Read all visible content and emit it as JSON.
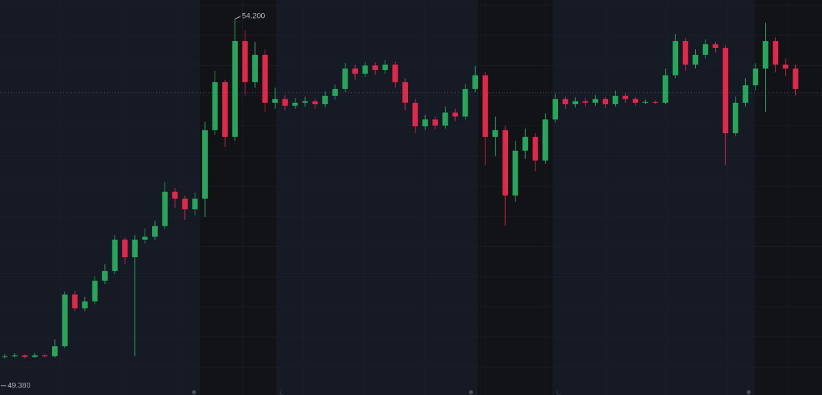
{
  "chart_data": {
    "type": "candlestick",
    "open": [
      49.76,
      49.77,
      49.78,
      49.76,
      49.78,
      49.77,
      49.9,
      50.58,
      50.4,
      50.49,
      50.76,
      50.89,
      51.3,
      51.07,
      51.3,
      51.34,
      51.48,
      51.93,
      51.84,
      51.7,
      51.84,
      52.74,
      53.37,
      52.65,
      53.91,
      53.37,
      53.73,
      53.1,
      53.15,
      53.06,
      53.1,
      53.12,
      53.08,
      53.19,
      53.28,
      53.55,
      53.48,
      53.59,
      53.53,
      53.6,
      53.37,
      53.1,
      52.79,
      52.88,
      52.8,
      52.97,
      52.92,
      53.28,
      53.46,
      52.65,
      52.74,
      51.88,
      52.47,
      52.65,
      52.34,
      52.88,
      53.15,
      53.08,
      53.12,
      53.1,
      53.15,
      53.08,
      53.19,
      53.15,
      53.1,
      53.11,
      53.1,
      53.46,
      53.91,
      53.6,
      53.73,
      53.87,
      53.82,
      52.7,
      53.1,
      53.33,
      53.55,
      53.91,
      53.6,
      53.55
    ],
    "high": [
      49.8,
      49.81,
      49.8,
      49.81,
      49.8,
      49.99,
      50.62,
      50.63,
      50.55,
      50.82,
      50.98,
      51.36,
      51.33,
      51.36,
      51.45,
      51.55,
      52.06,
      51.98,
      51.88,
      51.92,
      52.85,
      53.52,
      53.4,
      54.2,
      54.05,
      53.9,
      53.8,
      53.3,
      53.2,
      53.16,
      53.18,
      53.16,
      53.25,
      53.34,
      53.62,
      53.6,
      53.64,
      53.63,
      53.66,
      53.64,
      53.42,
      53.15,
      52.94,
      52.92,
      53.05,
      53.02,
      53.35,
      53.58,
      53.5,
      52.92,
      52.8,
      52.6,
      52.76,
      52.7,
      52.96,
      53.22,
      53.18,
      53.17,
      53.16,
      53.2,
      53.18,
      53.26,
      53.22,
      53.18,
      53.14,
      53.13,
      53.55,
      54.0,
      53.95,
      53.8,
      53.93,
      53.9,
      53.86,
      53.18,
      53.42,
      53.62,
      54.15,
      53.96,
      53.68,
      53.6
    ],
    "low": [
      49.74,
      49.75,
      49.74,
      49.75,
      49.75,
      49.75,
      49.88,
      50.36,
      50.36,
      50.45,
      50.72,
      50.85,
      50.98,
      49.77,
      51.25,
      51.3,
      51.44,
      51.72,
      51.56,
      51.62,
      51.6,
      52.68,
      52.52,
      52.6,
      53.2,
      53.3,
      52.98,
      53.02,
      53.0,
      53.02,
      53.05,
      53.02,
      53.04,
      53.14,
      53.24,
      53.4,
      53.44,
      53.47,
      53.48,
      53.3,
      53.0,
      52.7,
      52.74,
      52.75,
      52.76,
      52.86,
      52.88,
      53.24,
      52.28,
      52.4,
      51.48,
      51.8,
      52.36,
      52.2,
      52.3,
      52.84,
      53.02,
      53.04,
      53.05,
      53.06,
      53.03,
      53.05,
      53.1,
      53.06,
      53.08,
      53.08,
      53.08,
      53.42,
      53.52,
      53.55,
      53.68,
      53.76,
      52.28,
      52.66,
      53.05,
      53.26,
      52.98,
      53.5,
      53.45,
      53.2
    ],
    "close": [
      49.77,
      49.78,
      49.76,
      49.78,
      49.77,
      49.9,
      50.58,
      50.4,
      50.49,
      50.76,
      50.89,
      51.3,
      51.07,
      51.3,
      51.34,
      51.48,
      51.93,
      51.84,
      51.7,
      51.84,
      52.74,
      53.37,
      52.65,
      53.91,
      53.37,
      53.73,
      53.1,
      53.15,
      53.06,
      53.1,
      53.12,
      53.08,
      53.19,
      53.28,
      53.55,
      53.48,
      53.59,
      53.53,
      53.6,
      53.37,
      53.1,
      52.79,
      52.88,
      52.8,
      52.97,
      52.92,
      53.28,
      53.46,
      52.65,
      52.74,
      51.88,
      52.47,
      52.65,
      52.34,
      52.88,
      53.15,
      53.08,
      53.12,
      53.1,
      53.15,
      53.08,
      53.19,
      53.15,
      53.1,
      53.11,
      53.1,
      53.46,
      53.91,
      53.6,
      53.73,
      53.87,
      53.82,
      52.7,
      53.1,
      53.33,
      53.55,
      53.91,
      53.6,
      53.55,
      53.28
    ],
    "up_color": "#26a65b",
    "down_color": "#e0294a",
    "ylim": [
      49.26,
      54.45
    ],
    "price_line": 53.23,
    "annotations": [
      {
        "value": 54.2,
        "label": "54.200"
      },
      {
        "value": 49.38,
        "label": "49.380"
      }
    ]
  }
}
